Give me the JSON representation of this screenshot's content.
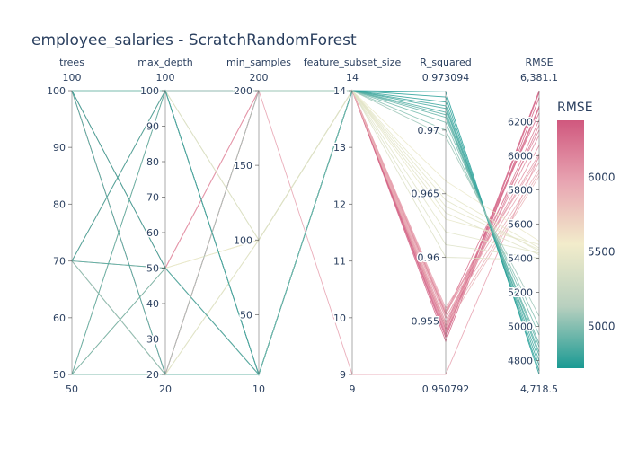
{
  "chart_data": {
    "type": "parallel_coordinates",
    "title": "employee_salaries - ScratchRandomForest",
    "dimensions": [
      {
        "label": "trees",
        "range": [
          50,
          100
        ],
        "range_labels": [
          "50",
          "100"
        ],
        "ticks": [
          50,
          60,
          70,
          80,
          90,
          100
        ]
      },
      {
        "label": "max_depth",
        "range": [
          20,
          100
        ],
        "range_labels": [
          "20",
          "100"
        ],
        "ticks": [
          20,
          30,
          40,
          50,
          60,
          70,
          80,
          90,
          100
        ]
      },
      {
        "label": "min_samples",
        "range": [
          10,
          200
        ],
        "range_labels": [
          "10",
          "200"
        ],
        "ticks": [
          50,
          100,
          150,
          200
        ]
      },
      {
        "label": "feature_subset_size",
        "range": [
          9,
          14
        ],
        "range_labels": [
          "9",
          "14"
        ],
        "ticks": [
          9,
          10,
          11,
          12,
          13,
          14
        ]
      },
      {
        "label": "R_squared",
        "range": [
          0.950792,
          0.973094
        ],
        "range_labels": [
          "0.950792",
          "0.973094"
        ],
        "ticks": [
          0.955,
          0.96,
          0.965,
          0.97
        ]
      },
      {
        "label": "RMSE",
        "range": [
          4718.5,
          6381.1
        ],
        "range_labels": [
          "4,718.5",
          "6,381.1"
        ],
        "ticks": [
          4800,
          5000,
          5200,
          5400,
          5600,
          5800,
          6000,
          6200
        ]
      }
    ],
    "colorscale": [
      "#1a9a93",
      "#b8d0bf",
      "#f2eccb",
      "#e8a5b2",
      "#d0587e"
    ],
    "colorbar": {
      "title": "RMSE",
      "ticks": [
        5000,
        5500,
        6000
      ]
    },
    "lines": [
      [
        100,
        100,
        200,
        14,
        0.9539,
        6381.1
      ],
      [
        100,
        50,
        200,
        14,
        0.9537,
        6370
      ],
      [
        100,
        20,
        200,
        14,
        0.9534,
        6340
      ],
      [
        100,
        100,
        10,
        14,
        0.9546,
        6290
      ],
      [
        100,
        50,
        10,
        14,
        0.9544,
        6280
      ],
      [
        100,
        20,
        10,
        14,
        0.9556,
        6250
      ],
      [
        70,
        100,
        200,
        14,
        0.9543,
        6210
      ],
      [
        70,
        50,
        200,
        14,
        0.9541,
        6180
      ],
      [
        70,
        20,
        200,
        14,
        0.9555,
        6150
      ],
      [
        70,
        100,
        10,
        14,
        0.9549,
        6120
      ],
      [
        70,
        20,
        10,
        14,
        0.9552,
        6060
      ],
      [
        50,
        100,
        200,
        14,
        0.9558,
        6010
      ],
      [
        50,
        50,
        200,
        14,
        0.956,
        5990
      ],
      [
        50,
        20,
        200,
        14,
        0.9557,
        5960
      ],
      [
        50,
        100,
        10,
        14,
        0.9553,
        5920
      ],
      [
        50,
        50,
        10,
        14,
        0.9548,
        5900
      ],
      [
        50,
        20,
        10,
        14,
        0.9545,
        5880
      ],
      [
        50,
        20,
        200,
        9,
        0.9508,
        6000
      ],
      [
        100,
        100,
        100,
        14,
        0.963,
        5480
      ],
      [
        70,
        50,
        100,
        14,
        0.964,
        5450
      ],
      [
        50,
        20,
        100,
        14,
        0.962,
        5430
      ],
      [
        100,
        50,
        100,
        14,
        0.965,
        5460
      ],
      [
        70,
        100,
        100,
        14,
        0.961,
        5400
      ],
      [
        50,
        50,
        100,
        14,
        0.966,
        5500
      ],
      [
        100,
        20,
        100,
        14,
        0.9645,
        5440
      ],
      [
        70,
        20,
        100,
        14,
        0.9635,
        5420
      ],
      [
        50,
        100,
        100,
        14,
        0.96,
        5390
      ],
      [
        100,
        100,
        10,
        14,
        0.973,
        4718.5
      ],
      [
        100,
        50,
        10,
        14,
        0.9726,
        4740
      ],
      [
        70,
        100,
        10,
        14,
        0.9722,
        4770
      ],
      [
        100,
        20,
        10,
        14,
        0.9719,
        4800
      ],
      [
        70,
        50,
        10,
        14,
        0.9717,
        4830
      ],
      [
        50,
        100,
        10,
        14,
        0.9714,
        4850
      ],
      [
        70,
        20,
        10,
        14,
        0.9712,
        4880
      ],
      [
        50,
        50,
        10,
        14,
        0.971,
        4900
      ],
      [
        50,
        20,
        10,
        14,
        0.9706,
        4950
      ],
      [
        100,
        100,
        200,
        14,
        0.97,
        5000
      ],
      [
        70,
        20,
        200,
        14,
        0.9695,
        5060
      ]
    ]
  }
}
